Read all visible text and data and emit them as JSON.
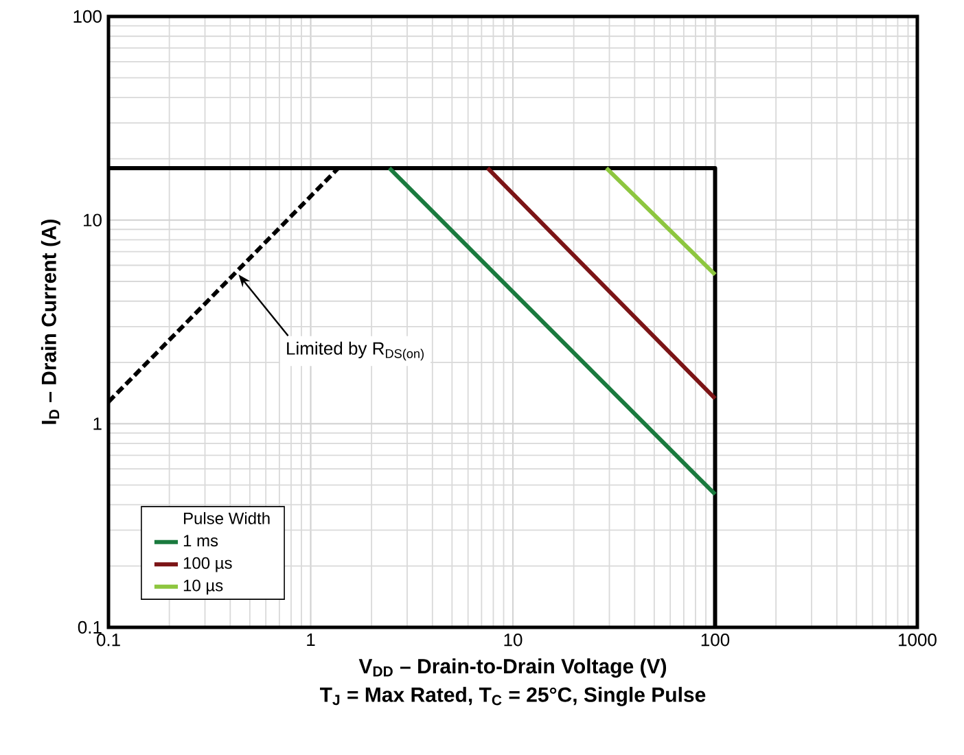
{
  "chart_data": {
    "type": "line",
    "xlabel": "V$_{DD}$ – Drain-to-Drain Voltage (V)",
    "ylabel": "I$_{D}$ – Drain Current (A)",
    "legend_title": "Pulse Width",
    "log": "xy",
    "xlim": [
      0.1,
      1000
    ],
    "ylim": [
      0.1,
      100
    ],
    "xticks": [
      0.1,
      1,
      10,
      100,
      1000
    ],
    "yticks": [
      0.1,
      1,
      10,
      100
    ],
    "grid": true,
    "legend": "bottom left",
    "series": [
      {
        "type": "line",
        "color": "#000000",
        "line_style": "solid",
        "x": [
          0.1,
          100,
          100
        ],
        "values": [
          18,
          18,
          0.1
        ]
      },
      {
        "type": "line",
        "color": "#000000",
        "line_style": "dashed",
        "x": [
          0.1,
          1.37
        ],
        "values": [
          1.28,
          18
        ]
      },
      {
        "name": "1 ms",
        "color": "#1a7a3e",
        "line_style": "solid",
        "x": [
          2.45,
          100
        ],
        "values": [
          18,
          0.45
        ]
      },
      {
        "name": "100 µs",
        "color": "#7b1416",
        "line_style": "solid",
        "x": [
          7.5,
          100
        ],
        "values": [
          18,
          1.33
        ]
      },
      {
        "name": "10 µs",
        "color": "#8dc63f",
        "line_style": "solid",
        "x": [
          29,
          100
        ],
        "values": [
          18,
          5.4
        ]
      }
    ],
    "annotations": [
      {
        "text": "Limited by R$_{DS(on)}$",
        "x": 0.44,
        "y": 5.4
      },
      "T$_{J}$ = Max Rated, T$_{C}$ = 25°C, Single Pulse"
    ]
  }
}
